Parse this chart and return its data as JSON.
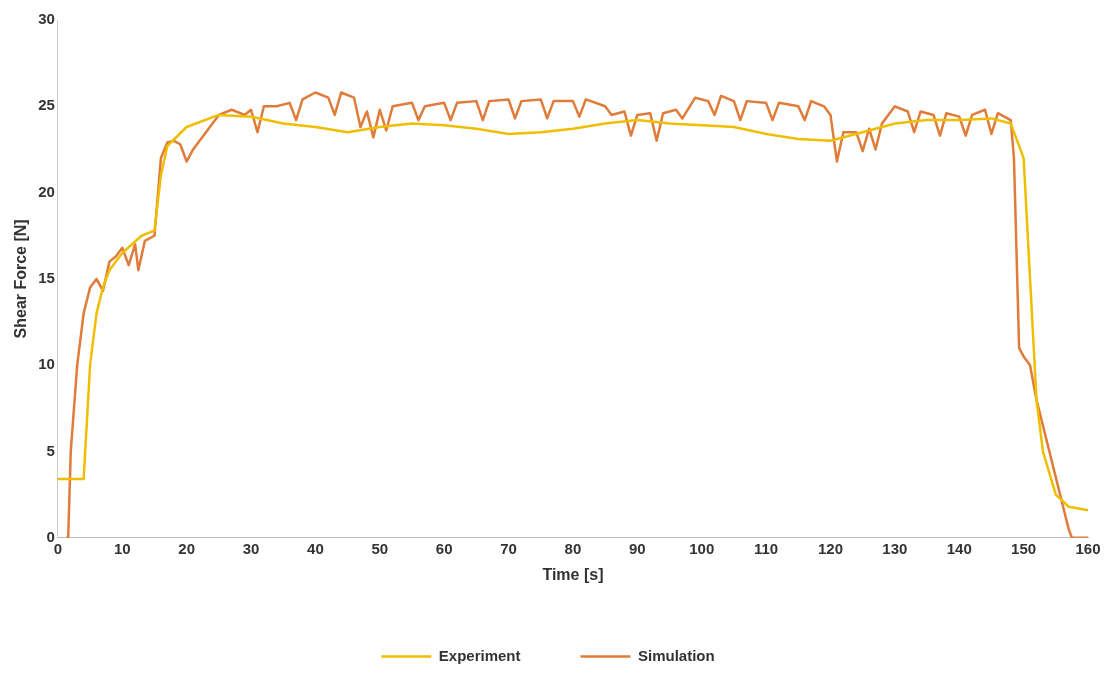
{
  "chart_data": {
    "type": "line",
    "xlabel": "Time [s]",
    "ylabel": "Shear Force [N]",
    "xlim": [
      0,
      160
    ],
    "xticks": [
      0,
      10,
      20,
      30,
      40,
      50,
      60,
      70,
      80,
      90,
      100,
      110,
      120,
      130,
      140,
      150,
      160
    ],
    "ylim": [
      0,
      30
    ],
    "yticks": [
      0,
      5,
      10,
      15,
      20,
      25,
      30
    ],
    "grid": false,
    "legend": "bottom",
    "marker": "none",
    "line_style": "solid",
    "series": [
      {
        "name": "Experiment",
        "color": "#f0be00",
        "x": [
          0,
          4,
          5,
          6,
          7,
          8,
          10,
          13,
          15,
          16,
          17,
          20,
          25,
          30,
          35,
          40,
          45,
          50,
          55,
          60,
          65,
          70,
          75,
          80,
          85,
          90,
          95,
          100,
          105,
          110,
          115,
          120,
          125,
          130,
          135,
          140,
          145,
          148,
          150,
          151,
          152,
          153,
          155,
          157,
          160
        ],
        "values": [
          3.4,
          3.4,
          10,
          13,
          14.5,
          15.5,
          16.5,
          17.5,
          17.8,
          21,
          22.7,
          23.8,
          24.5,
          24.4,
          24,
          23.8,
          23.5,
          23.8,
          24,
          23.9,
          23.7,
          23.4,
          23.5,
          23.7,
          24,
          24.2,
          24,
          23.9,
          23.8,
          23.4,
          23.1,
          23,
          23.5,
          24,
          24.2,
          24.2,
          24.3,
          24,
          22,
          15,
          8,
          5,
          2.5,
          1.8,
          1.6
        ]
      },
      {
        "name": "Simulation",
        "color": "#e07b39",
        "x": [
          1.3,
          1.6,
          2,
          3,
          4,
          5,
          6,
          7,
          8,
          9,
          10,
          11,
          12,
          12.5,
          13.5,
          15,
          16,
          17,
          18,
          19,
          20,
          21,
          23,
          25,
          27,
          29,
          30,
          31,
          32,
          34,
          36,
          37,
          38,
          40,
          42,
          43,
          44,
          46,
          47,
          48,
          49,
          50,
          51,
          52,
          55,
          56,
          57,
          60,
          61,
          62,
          65,
          66,
          67,
          70,
          71,
          72,
          75,
          76,
          77,
          80,
          81,
          82,
          85,
          86,
          88,
          89,
          90,
          92,
          93,
          94,
          96,
          97,
          99,
          101,
          102,
          103,
          105,
          106,
          107,
          110,
          111,
          112,
          115,
          116,
          117,
          119,
          120,
          121,
          122,
          124,
          125,
          126,
          127,
          128,
          130,
          132,
          133,
          134,
          136,
          137,
          138,
          140,
          141,
          142,
          144,
          145,
          146,
          148,
          148.5,
          149.3,
          150,
          151,
          152,
          153,
          154,
          155,
          156,
          157,
          157.5,
          160
        ],
        "values": [
          0,
          0,
          5,
          10,
          13,
          14.5,
          15,
          14.3,
          16,
          16.3,
          16.8,
          15.8,
          17,
          15.5,
          17.2,
          17.5,
          22,
          22.9,
          23,
          22.8,
          21.8,
          22.5,
          23.5,
          24.5,
          24.8,
          24.5,
          24.8,
          23.5,
          25,
          25,
          25.2,
          24.2,
          25.4,
          25.8,
          25.5,
          24.5,
          25.8,
          25.5,
          23.8,
          24.7,
          23.2,
          24.8,
          23.6,
          25,
          25.2,
          24.2,
          25,
          25.2,
          24.2,
          25.2,
          25.3,
          24.2,
          25.3,
          25.4,
          24.3,
          25.3,
          25.4,
          24.3,
          25.3,
          25.3,
          24.4,
          25.4,
          25,
          24.5,
          24.7,
          23.3,
          24.5,
          24.6,
          23,
          24.6,
          24.8,
          24.3,
          25.5,
          25.3,
          24.5,
          25.6,
          25.3,
          24.2,
          25.3,
          25.2,
          24.2,
          25.2,
          25,
          24.2,
          25.3,
          25,
          24.5,
          21.8,
          23.5,
          23.5,
          22.4,
          23.7,
          22.5,
          24,
          25,
          24.7,
          23.5,
          24.7,
          24.5,
          23.3,
          24.6,
          24.4,
          23.3,
          24.5,
          24.8,
          23.4,
          24.6,
          24.2,
          22,
          11,
          10.5,
          10,
          8,
          6.5,
          5,
          3.5,
          2,
          0.5,
          0,
          0
        ]
      }
    ]
  }
}
